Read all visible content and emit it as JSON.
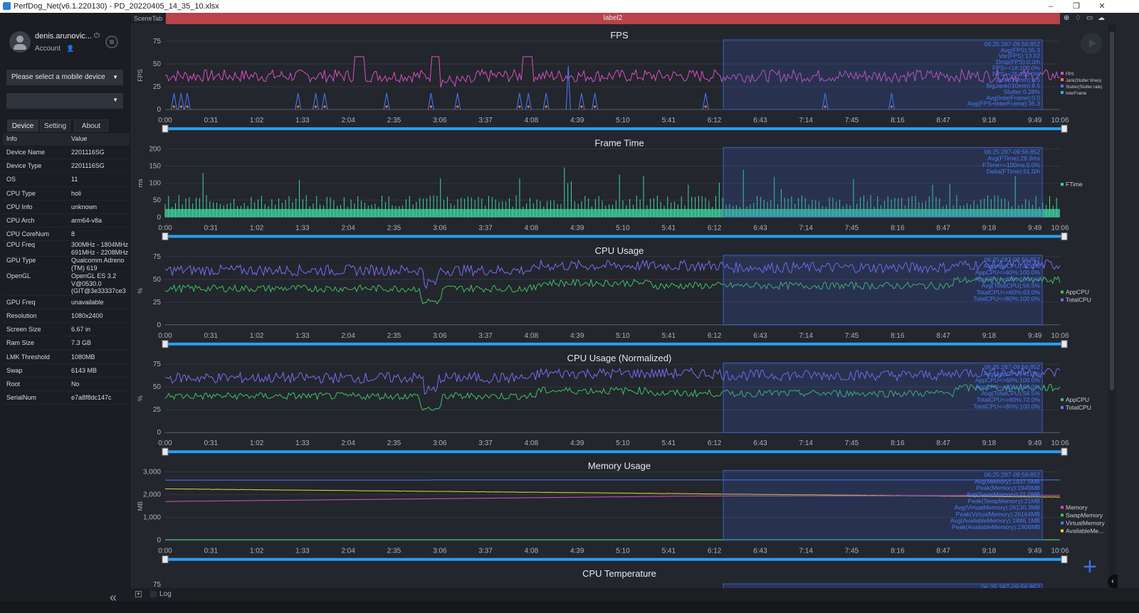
{
  "window": {
    "title": "PerfDog_Net(v6.1.220130) - PD_20220405_14_35_10.xlsx",
    "minimize": "–",
    "maximize": "❐",
    "close": "✕"
  },
  "user": {
    "name": "denis.arunovic...",
    "account_label": "Account"
  },
  "device_select": {
    "placeholder": "Please select a mobile device",
    "caret": "▼"
  },
  "app_select": {
    "value": "",
    "caret": "▼"
  },
  "tabs": [
    {
      "label": "Device",
      "active": true
    },
    {
      "label": "Setting",
      "active": false
    },
    {
      "label": "About",
      "active": false
    }
  ],
  "info_table": {
    "headers": [
      "Info",
      "Value"
    ],
    "rows": [
      [
        "Device Name",
        "2201116SG"
      ],
      [
        "Device Type",
        "2201116SG"
      ],
      [
        "OS",
        "11"
      ],
      [
        "CPU Type",
        "holi"
      ],
      [
        "CPU Info",
        "unknown"
      ],
      [
        "CPU Arch",
        "arm64-v8a"
      ],
      [
        "CPU CoreNum",
        "8"
      ],
      [
        "CPU Freq",
        "300MHz - 1804MHz\n691MHz - 2208MHz"
      ],
      [
        "GPU Type",
        "Qualcomm Adreno\n(TM) 619"
      ],
      [
        "OpenGL",
        "OpenGL ES 3.2\nV@0530.0\n(GIT@3e33337ce3"
      ],
      [
        "GPU Freq",
        "unavailable"
      ],
      [
        "Resolution",
        "1080x2400"
      ],
      [
        "Screen Size",
        "6.67 in"
      ],
      [
        "Ram Size",
        "7.3 GB"
      ],
      [
        "LMK Threshold",
        "1080MB"
      ],
      [
        "Swap",
        "6143 MB"
      ],
      [
        "Root",
        "No"
      ],
      [
        "SerialNum",
        "e7a8f8dc147c"
      ]
    ]
  },
  "scene_tab": "SceneTab",
  "scene_label": "label2",
  "log": {
    "label": "Log"
  },
  "x_ticks": [
    "0:00",
    "0:31",
    "1:02",
    "1:33",
    "2:04",
    "2:35",
    "3:06",
    "3:37",
    "4:08",
    "4:39",
    "5:10",
    "5:41",
    "6:12",
    "6:43",
    "7:14",
    "7:45",
    "8:16",
    "8:47",
    "9:18",
    "9:49",
    "10:06"
  ],
  "selection": {
    "start_min": 6.3,
    "end_min": 9.9
  },
  "colors": {
    "fps": "#d84fc0",
    "jank": "#ff7a3a",
    "stutter": "#4a7bff",
    "interframe": "#36b0d0",
    "ftime": "#3fd6a0",
    "appcpu": "#40c060",
    "totalcpu": "#7a6cf0",
    "memory": "#d050c0",
    "swapmemory": "#40c060",
    "virtualmemory": "#4a7bff",
    "availablememory": "#f0d030",
    "selection": "#3a5fc8",
    "scrollbar": "#2a9df4"
  },
  "charts": [
    {
      "title": "FPS",
      "ylabel": "FPS",
      "yticks": [
        "0",
        "25",
        "50",
        "75"
      ],
      "ymax": 75,
      "stats": [
        "06:25:287-09:56:852",
        "Avg(FPS):35.3",
        "Var(FPS):13.02",
        "Drop(FPS):0.0/h",
        "FPS>=18:100.0%",
        "FPS>=25:100.0%",
        "Jank(/10min):8.5",
        "BigJank(/10min):8.5",
        "Stutter:0.28%",
        "Avg(InterFrame):0.0",
        "Avg(FPS+InterFrame):35.3"
      ],
      "legend": [
        "FPS",
        "Jank(Stutter times)",
        "Stutter(Stutter rate)",
        "InterFrame"
      ],
      "legend_colors": [
        "#d84fc0",
        "#ff7a3a",
        "#4a7bff",
        "#36b0d0"
      ]
    },
    {
      "title": "Frame Time",
      "ylabel": "ms",
      "yticks": [
        "0",
        "50",
        "100",
        "150",
        "200"
      ],
      "ymax": 200,
      "stats": [
        "06:25:287-09:56:852",
        "Avg(FTime):28.3ms",
        "FTime>=100ms:0.0%",
        "Delta(FTime):51.0/h"
      ],
      "legend": [
        "FTime"
      ],
      "legend_colors": [
        "#3fd6a0"
      ]
    },
    {
      "title": "CPU Usage",
      "ylabel": "%",
      "yticks": [
        "0",
        "25",
        "50",
        "75"
      ],
      "ymax": 75,
      "stats": [
        "06:25:287-09:56:852",
        "Avg(AppCPU):42.1%",
        "AppCPU<=60%:100.0%",
        "AppCPU<=80%:100.0%",
        "Avg(TotalCPU):56.5%",
        "TotalCPU<=60%:63.0%",
        "TotalCPU<=80%:100.0%"
      ],
      "legend": [
        "AppCPU",
        "TotalCPU"
      ],
      "legend_colors": [
        "#40c060",
        "#7a6cf0"
      ]
    },
    {
      "title": "CPU Usage (Normalized)",
      "ylabel": "%",
      "yticks": [
        "0",
        "25",
        "50",
        "75"
      ],
      "ymax": 75,
      "stats": [
        "06:25:287-09:56:852",
        "Avg(AppCPU):41.3%",
        "AppCPU<=60%:100.0%",
        "AppCPU<=80%:100.0%",
        "Avg(TotalCPU):56.5%",
        "TotalCPU<=60%:72.0%",
        "TotalCPU<=80%:100.0%"
      ],
      "legend": [
        "AppCPU",
        "TotalCPU"
      ],
      "legend_colors": [
        "#40c060",
        "#7a6cf0"
      ]
    },
    {
      "title": "Memory Usage",
      "ylabel": "MB",
      "yticks": [
        "0",
        "1,000",
        "2,000",
        "3,000"
      ],
      "ymax": 3000,
      "stats": [
        "06:25:287-09:56:852",
        "Avg(Memory):1937.5MB",
        "Peak(Memory):1949MB",
        "Avg(SwapMemory):21.0MB",
        "Peak(SwapMemory):21MB",
        "Avg(VirtualMemory):26130.3MB",
        "Peak(VirtualMemory):26164MB",
        "Avg(AvailableMemory):1886.1MB",
        "Peak(AvailableMemory):1906MB"
      ],
      "legend": [
        "Memory",
        "SwapMemory",
        "VirtualMemory",
        "AvailableMe..."
      ],
      "legend_colors": [
        "#d050c0",
        "#40c060",
        "#4a7bff",
        "#f0d030"
      ]
    },
    {
      "title": "CPU Temperature",
      "ylabel": "",
      "yticks": [
        "75"
      ],
      "ymax": 75,
      "stats": [
        "06:25:287-09:56:852"
      ],
      "legend": [],
      "legend_colors": []
    }
  ]
}
